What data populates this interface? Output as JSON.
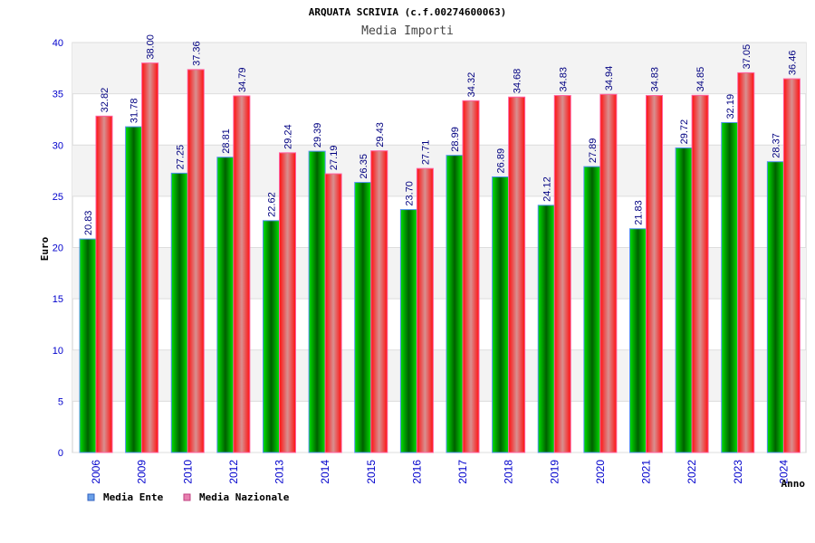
{
  "chart_data": {
    "type": "bar",
    "title": "ARQUATA SCRIVIA (c.f.00274600063)",
    "subtitle": "Media Importi",
    "xlabel": "Anno",
    "ylabel": "Euro",
    "ylim": [
      0,
      40
    ],
    "yticks": [
      0,
      5,
      10,
      15,
      20,
      25,
      30,
      35,
      40
    ],
    "grid": true,
    "legend_position": "bottom-left",
    "categories": [
      "2006",
      "2009",
      "2010",
      "2012",
      "2013",
      "2014",
      "2015",
      "2016",
      "2017",
      "2018",
      "2019",
      "2020",
      "2021",
      "2022",
      "2023",
      "2024"
    ],
    "series": [
      {
        "name": "Media Ente",
        "color": "#00c000",
        "values": [
          20.83,
          31.78,
          27.25,
          28.81,
          22.62,
          29.39,
          26.35,
          23.7,
          28.99,
          26.89,
          24.12,
          27.89,
          21.83,
          29.72,
          32.19,
          28.37
        ]
      },
      {
        "name": "Media Nazionale",
        "color": "#ff2020",
        "values": [
          32.82,
          38.0,
          37.36,
          34.79,
          29.24,
          27.19,
          29.43,
          27.71,
          34.32,
          34.68,
          34.83,
          34.94,
          34.83,
          34.85,
          37.05,
          36.46
        ]
      }
    ]
  }
}
